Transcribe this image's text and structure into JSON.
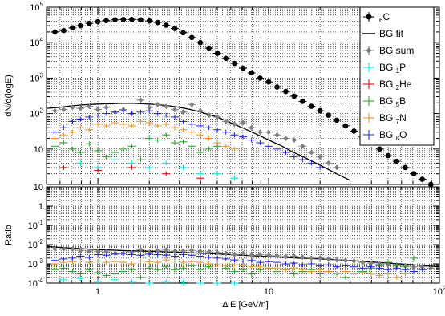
{
  "chart_data": [
    {
      "type": "scatter",
      "panel": "top",
      "ylabel": "dN/d(logE)",
      "xscale": "log",
      "yscale": "log",
      "xlim": [
        0.5,
        100
      ],
      "ylim": [
        1,
        100000
      ],
      "grid": true,
      "legend_position": "top-right",
      "x_tick_labels": [
        "1",
        "10",
        "10²"
      ],
      "y_tick_labels": [
        {
          "v": 10,
          "base": "10",
          "exp": ""
        },
        {
          "v": 100,
          "base": "10",
          "exp": "2"
        },
        {
          "v": 1000,
          "base": "10",
          "exp": "3"
        },
        {
          "v": 10000,
          "base": "10",
          "exp": "4"
        },
        {
          "v": 100000,
          "base": "10",
          "exp": "5"
        }
      ],
      "series": [
        {
          "name": "6C",
          "label_sub": "6",
          "label_main": "C",
          "label_sub_pos": "pre",
          "color": "#000000",
          "marker": "circle",
          "x": [
            0.56,
            0.63,
            0.71,
            0.79,
            0.89,
            1.0,
            1.12,
            1.26,
            1.41,
            1.58,
            1.78,
            2.0,
            2.24,
            2.51,
            2.82,
            3.16,
            3.55,
            3.98,
            4.47,
            5.01,
            5.62,
            6.31,
            7.08,
            7.94,
            8.91,
            10.0,
            11.2,
            12.6,
            14.1,
            15.8,
            17.8,
            20.0,
            22.4,
            25.1,
            28.2,
            31.6,
            35.5,
            39.8,
            44.7,
            50.1,
            56.2,
            63.1,
            70.8,
            79.4,
            89.1,
            100
          ],
          "y": [
            20000,
            22000,
            26000,
            30000,
            35000,
            39000,
            42000,
            44000,
            45000,
            45000,
            44000,
            41000,
            37000,
            31000,
            25000,
            19000,
            14000,
            10000,
            7000,
            5000,
            3600,
            2600,
            1900,
            1400,
            1000,
            780,
            560,
            420,
            310,
            220,
            160,
            120,
            90,
            65,
            45,
            32,
            22,
            15,
            10,
            6.5,
            4.5,
            3.0,
            2.0,
            1.4,
            1.0,
            0.7
          ]
        },
        {
          "name": "BG fit",
          "label_main": "BG fit",
          "color": "#000000",
          "marker": "line",
          "x": [
            0.5,
            0.6,
            0.7,
            0.8,
            0.9,
            1.0,
            1.2,
            1.4,
            1.6,
            1.8,
            2.0,
            2.5,
            3.0,
            3.5,
            4.0,
            5.0,
            6.0,
            7.0,
            8.0,
            9.0,
            10,
            12,
            14,
            16,
            18,
            20,
            25,
            30
          ],
          "y": [
            140,
            150,
            165,
            175,
            180,
            185,
            190,
            195,
            195,
            190,
            185,
            170,
            150,
            130,
            110,
            80,
            55,
            40,
            30,
            23,
            18,
            12,
            8,
            6,
            4.5,
            3.5,
            2,
            1.3
          ]
        },
        {
          "name": "BG sum",
          "label_main": "BG sum",
          "color": "#808080",
          "marker": "diamond",
          "x": [
            0.56,
            0.63,
            0.71,
            0.79,
            0.89,
            1.0,
            1.12,
            1.26,
            1.41,
            1.58,
            1.78,
            2.0,
            2.24,
            2.51,
            2.82,
            3.16,
            3.55,
            3.98,
            4.47,
            5.01,
            5.62,
            6.31,
            7.08,
            7.94,
            8.91,
            10.0,
            11.2,
            12.6,
            14.1,
            15.8,
            17.8,
            20.0,
            22.4,
            25.1
          ],
          "y": [
            120,
            130,
            150,
            140,
            160,
            130,
            150,
            110,
            130,
            100,
            240,
            150,
            180,
            160,
            130,
            110,
            180,
            120,
            90,
            80,
            60,
            50,
            55,
            40,
            30,
            30,
            25,
            20,
            18,
            12,
            8,
            6,
            4,
            3
          ]
        },
        {
          "name": "BG 1P",
          "label_main": "BG ",
          "label_sub": "1",
          "label_after": "P",
          "color": "#00e5e5",
          "marker": "cross",
          "x": [
            0.63,
            0.79,
            1.0,
            1.26,
            1.58,
            2.0,
            2.51,
            3.16,
            3.98,
            5.01,
            6.31
          ],
          "y": [
            3,
            4,
            3,
            5,
            4,
            3,
            4,
            3,
            2,
            2,
            1.5
          ]
        },
        {
          "name": "BG 2He",
          "label_main": "BG ",
          "label_sub": "2",
          "label_after": "He",
          "color": "#e00000",
          "marker": "cross",
          "x": [
            0.63,
            1.0,
            1.58,
            2.51,
            3.98
          ],
          "y": [
            3,
            2.5,
            3,
            2,
            1.5
          ]
        },
        {
          "name": "BG 5B",
          "label_main": "BG ",
          "label_sub": "5",
          "label_after": "B",
          "color": "#22a022",
          "marker": "cross",
          "x": [
            0.56,
            0.63,
            0.71,
            0.79,
            0.89,
            1.0,
            1.12,
            1.26,
            1.41,
            1.58,
            1.78,
            2.0,
            2.24,
            2.51,
            2.82,
            3.16,
            3.55,
            3.98,
            4.47,
            5.01
          ],
          "y": [
            12,
            15,
            10,
            8,
            14,
            9,
            6,
            8,
            10,
            12,
            5,
            20,
            18,
            25,
            15,
            16,
            12,
            8,
            10,
            12
          ]
        },
        {
          "name": "BG 7N",
          "label_main": "BG ",
          "label_sub": "7",
          "label_after": "N",
          "color": "#f09020",
          "marker": "cross",
          "x": [
            0.56,
            0.63,
            0.71,
            0.79,
            0.89,
            1.0,
            1.12,
            1.26,
            1.41,
            1.58,
            1.78,
            2.0,
            2.24,
            2.51,
            2.82,
            3.16,
            3.55,
            3.98,
            4.47,
            5.01,
            5.62,
            6.31
          ],
          "y": [
            20,
            25,
            30,
            40,
            35,
            50,
            45,
            55,
            50,
            45,
            60,
            55,
            45,
            50,
            40,
            35,
            30,
            25,
            20,
            15,
            12,
            10
          ]
        },
        {
          "name": "BG 8O",
          "label_main": "BG ",
          "label_sub": "8",
          "label_after": "O",
          "color": "#2020e0",
          "marker": "cross",
          "x": [
            0.56,
            0.63,
            0.71,
            0.79,
            0.89,
            1.0,
            1.12,
            1.26,
            1.41,
            1.58,
            1.78,
            2.0,
            2.24,
            2.51,
            2.82,
            3.16,
            3.55,
            3.98,
            4.47,
            5.01,
            5.62,
            6.31,
            7.08,
            7.94,
            8.91,
            10.0,
            11.2,
            12.6,
            14.1,
            15.8,
            17.8,
            20.0
          ],
          "y": [
            30,
            40,
            60,
            70,
            80,
            90,
            100,
            110,
            120,
            100,
            110,
            120,
            100,
            90,
            80,
            60,
            50,
            45,
            40,
            35,
            30,
            25,
            22,
            18,
            15,
            12,
            10,
            8,
            6,
            5,
            4,
            3
          ]
        }
      ]
    },
    {
      "type": "scatter",
      "panel": "bottom",
      "xlabel": "Δ E [GeV/n]",
      "ylabel": "Ratio",
      "xscale": "log",
      "yscale": "log",
      "xlim": [
        0.5,
        100
      ],
      "ylim": [
        0.0001,
        10
      ],
      "grid": true,
      "x_tick_labels": [
        {
          "v": 1,
          "base": "1",
          "exp": ""
        },
        {
          "v": 10,
          "base": "10",
          "exp": ""
        },
        {
          "v": 100,
          "base": "10",
          "exp": "2"
        }
      ],
      "y_tick_labels": [
        {
          "v": 0.0001,
          "base": "10",
          "exp": "-4"
        },
        {
          "v": 0.001,
          "base": "10",
          "exp": "-3"
        },
        {
          "v": 0.01,
          "base": "10",
          "exp": "-2"
        },
        {
          "v": 0.1,
          "base": "10",
          "exp": "-1"
        },
        {
          "v": 1,
          "base": "1",
          "exp": ""
        },
        {
          "v": 10,
          "base": "10",
          "exp": ""
        }
      ],
      "series": [
        {
          "name": "BG fit",
          "color": "#000000",
          "marker": "line",
          "x": [
            0.5,
            0.7,
            1,
            1.5,
            2,
            3,
            5,
            7,
            10,
            15,
            20,
            30,
            50,
            70,
            100
          ],
          "y": [
            0.008,
            0.0065,
            0.0055,
            0.0048,
            0.0045,
            0.004,
            0.0033,
            0.0028,
            0.0024,
            0.002,
            0.0018,
            0.0015,
            0.0011,
            0.0009,
            0.0007
          ]
        },
        {
          "name": "BG sum",
          "color": "#808080",
          "marker": "diamond",
          "x": [
            0.56,
            0.63,
            0.71,
            0.79,
            0.89,
            1.0,
            1.12,
            1.26,
            1.41,
            1.58,
            1.78,
            2.0,
            2.24,
            2.51,
            2.82,
            3.16,
            3.55,
            3.98,
            4.47,
            5.01,
            5.62,
            6.31,
            7.08,
            7.94,
            8.91,
            10.0,
            11.2,
            12.6,
            14.1,
            15.8,
            17.8,
            20.0,
            22.4,
            25.1,
            28.2,
            31.6,
            35.5,
            39.8,
            44.7,
            50.1,
            56.2,
            63.1,
            70.8,
            79.4,
            89.1
          ],
          "y": [
            0.006,
            0.006,
            0.0058,
            0.005,
            0.0046,
            0.0045,
            0.0042,
            0.0035,
            0.0035,
            0.0038,
            0.0055,
            0.0037,
            0.0048,
            0.0052,
            0.0045,
            0.0047,
            0.005,
            0.0045,
            0.0042,
            0.0038,
            0.0035,
            0.003,
            0.0035,
            0.0028,
            0.003,
            0.0028,
            0.0026,
            0.0024,
            0.0025,
            0.0022,
            0.002,
            0.002,
            0.0018,
            0.0016,
            0.0015,
            0.0014,
            0.0012,
            0.0011,
            0.001,
            0.0009,
            0.0008,
            0.0008,
            0.0007,
            0.0007,
            0.0006
          ]
        },
        {
          "name": "BG 1P",
          "color": "#00e5e5",
          "marker": "cross",
          "x": [
            0.63,
            0.79,
            1.0,
            1.26,
            1.58,
            2.0,
            2.51,
            3.16,
            3.98,
            5.01,
            6.31
          ],
          "y": [
            0.00015,
            0.00018,
            0.00012,
            0.00015,
            0.00012,
            0.0001,
            0.00012,
            0.00011,
            0.0001,
            0.0001,
            0.0001
          ]
        },
        {
          "name": "BG 5B",
          "color": "#22a022",
          "marker": "cross",
          "x": [
            0.56,
            0.63,
            0.71,
            0.79,
            0.89,
            1.0,
            1.12,
            1.26,
            1.41,
            1.58,
            1.78,
            2.0,
            2.24,
            2.51,
            2.82,
            3.16,
            3.55,
            3.98,
            4.47,
            5.01,
            5.62,
            6.31,
            7.08,
            7.94,
            8.91,
            10.0,
            11.2,
            12.6,
            14.1,
            15.8,
            17.8,
            20.0,
            22.4,
            25.1,
            28.2,
            31.6,
            35.5,
            39.8,
            44.7,
            50.1,
            56.2,
            63.1,
            70.8,
            79.4
          ],
          "y": [
            0.0005,
            0.0006,
            0.0004,
            0.0003,
            0.0005,
            0.00035,
            0.00025,
            0.0003,
            0.0004,
            0.0005,
            0.0002,
            0.0006,
            0.0005,
            0.0007,
            0.0005,
            0.0006,
            0.0008,
            0.0005,
            0.0007,
            0.0009,
            0.0006,
            0.0004,
            0.0005,
            0.0003,
            0.0005,
            0.0006,
            0.0004,
            0.0005,
            0.0003,
            0.0004,
            0.0005,
            0.0003,
            0.0004,
            0.0003,
            0.0002,
            0.0003,
            0.0004,
            0.0006,
            0.0008,
            0.0012,
            0.0009,
            0.0007,
            0.002,
            0.0005
          ]
        },
        {
          "name": "BG 7N",
          "color": "#f09020",
          "marker": "cross",
          "x": [
            0.56,
            0.63,
            0.71,
            0.79,
            0.89,
            1.0,
            1.12,
            1.26,
            1.41,
            1.58,
            1.78,
            2.0,
            2.24,
            2.51,
            2.82,
            3.16,
            3.55,
            3.98,
            4.47,
            5.01,
            5.62,
            6.31,
            7.08,
            7.94,
            8.91,
            10.0,
            11.2,
            12.6,
            14.1,
            15.8,
            17.8,
            20.0,
            22.4,
            25.1,
            28.2,
            31.6,
            35.5,
            39.8,
            44.7,
            50.1,
            56.2,
            63.1
          ],
          "y": [
            0.001,
            0.0012,
            0.0013,
            0.0014,
            0.0012,
            0.0014,
            0.0012,
            0.0013,
            0.0012,
            0.001,
            0.0014,
            0.0013,
            0.0012,
            0.0016,
            0.0014,
            0.0012,
            0.0013,
            0.0012,
            0.001,
            0.0009,
            0.0008,
            0.0009,
            0.0008,
            0.0007,
            0.0007,
            0.0006,
            0.0006,
            0.0005,
            0.0006,
            0.0005,
            0.0004,
            0.0005,
            0.0004,
            0.0003,
            0.0004,
            0.0003,
            0.00035,
            0.0003,
            0.00025,
            0.0003,
            0.0002,
            0.0003
          ]
        },
        {
          "name": "BG 8O",
          "color": "#2020e0",
          "marker": "cross",
          "x": [
            0.56,
            0.63,
            0.71,
            0.79,
            0.89,
            1.0,
            1.12,
            1.26,
            1.41,
            1.58,
            1.78,
            2.0,
            2.24,
            2.51,
            2.82,
            3.16,
            3.55,
            3.98,
            4.47,
            5.01,
            5.62,
            6.31,
            7.08,
            7.94,
            8.91,
            10.0,
            11.2,
            12.6,
            14.1,
            15.8,
            17.8,
            20.0,
            22.4,
            25.1,
            28.2,
            31.6,
            35.5,
            39.8,
            44.7,
            50.1,
            56.2,
            63.1,
            70.8,
            79.4
          ],
          "y": [
            0.0015,
            0.0018,
            0.002,
            0.0025,
            0.0022,
            0.003,
            0.0028,
            0.0032,
            0.0035,
            0.003,
            0.0028,
            0.0032,
            0.003,
            0.0028,
            0.0025,
            0.003,
            0.0028,
            0.0025,
            0.0022,
            0.002,
            0.0018,
            0.0016,
            0.0014,
            0.0015,
            0.0012,
            0.0013,
            0.0012,
            0.001,
            0.0011,
            0.0009,
            0.001,
            0.0008,
            0.0009,
            0.0007,
            0.0008,
            0.0007,
            0.0006,
            0.0007,
            0.0006,
            0.0005,
            0.0006,
            0.0005,
            0.0004,
            0.0005
          ]
        }
      ]
    }
  ]
}
